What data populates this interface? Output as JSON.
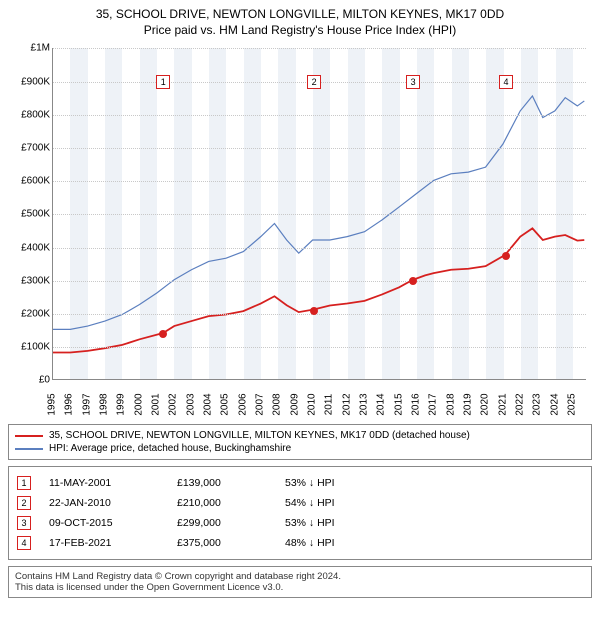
{
  "title": {
    "line1": "35, SCHOOL DRIVE, NEWTON LONGVILLE, MILTON KEYNES, MK17 0DD",
    "line2": "Price paid vs. HM Land Registry's House Price Index (HPI)"
  },
  "chart": {
    "type": "line",
    "background_color": "#ffffff",
    "band_color": "#eef2f7",
    "grid_color": "#c8c8c8",
    "axis_color": "#888888",
    "x": {
      "min": 1995,
      "max": 2025.8,
      "ticks": [
        1995,
        1996,
        1997,
        1998,
        1999,
        2000,
        2001,
        2002,
        2003,
        2004,
        2005,
        2006,
        2007,
        2008,
        2009,
        2010,
        2011,
        2012,
        2013,
        2014,
        2015,
        2016,
        2017,
        2018,
        2019,
        2020,
        2021,
        2022,
        2023,
        2024,
        2025
      ]
    },
    "y": {
      "min": 0,
      "max": 1000000,
      "ticks": [
        {
          "v": 0,
          "label": "£0"
        },
        {
          "v": 100000,
          "label": "£100K"
        },
        {
          "v": 200000,
          "label": "£200K"
        },
        {
          "v": 300000,
          "label": "£300K"
        },
        {
          "v": 400000,
          "label": "£400K"
        },
        {
          "v": 500000,
          "label": "£500K"
        },
        {
          "v": 600000,
          "label": "£600K"
        },
        {
          "v": 700000,
          "label": "£700K"
        },
        {
          "v": 800000,
          "label": "£800K"
        },
        {
          "v": 900000,
          "label": "£900K"
        },
        {
          "v": 1000000,
          "label": "£1M"
        }
      ]
    },
    "bands": [
      {
        "from": 1996,
        "to": 1997
      },
      {
        "from": 1998,
        "to": 1999
      },
      {
        "from": 2000,
        "to": 2001
      },
      {
        "from": 2002,
        "to": 2003
      },
      {
        "from": 2004,
        "to": 2005
      },
      {
        "from": 2006,
        "to": 2007
      },
      {
        "from": 2008,
        "to": 2009
      },
      {
        "from": 2010,
        "to": 2011
      },
      {
        "from": 2012,
        "to": 2013
      },
      {
        "from": 2014,
        "to": 2015
      },
      {
        "from": 2016,
        "to": 2017
      },
      {
        "from": 2018,
        "to": 2019
      },
      {
        "from": 2020,
        "to": 2021
      },
      {
        "from": 2022,
        "to": 2023
      },
      {
        "from": 2024,
        "to": 2025
      }
    ],
    "series": [
      {
        "id": "hpi",
        "label": "HPI: Average price, detached house, Buckinghamshire",
        "color": "#5b7fbf",
        "width": 1.2,
        "points": [
          [
            1995.0,
            150000
          ],
          [
            1996.0,
            150000
          ],
          [
            1997.0,
            160000
          ],
          [
            1998.0,
            175000
          ],
          [
            1999.0,
            195000
          ],
          [
            2000.0,
            225000
          ],
          [
            2001.0,
            260000
          ],
          [
            2002.0,
            300000
          ],
          [
            2003.0,
            330000
          ],
          [
            2004.0,
            355000
          ],
          [
            2005.0,
            365000
          ],
          [
            2006.0,
            385000
          ],
          [
            2007.0,
            430000
          ],
          [
            2007.8,
            470000
          ],
          [
            2008.5,
            420000
          ],
          [
            2009.2,
            380000
          ],
          [
            2010.0,
            420000
          ],
          [
            2011.0,
            420000
          ],
          [
            2012.0,
            430000
          ],
          [
            2013.0,
            445000
          ],
          [
            2014.0,
            480000
          ],
          [
            2015.0,
            520000
          ],
          [
            2016.0,
            560000
          ],
          [
            2017.0,
            600000
          ],
          [
            2018.0,
            620000
          ],
          [
            2019.0,
            625000
          ],
          [
            2020.0,
            640000
          ],
          [
            2021.0,
            710000
          ],
          [
            2022.0,
            810000
          ],
          [
            2022.7,
            855000
          ],
          [
            2023.3,
            790000
          ],
          [
            2024.0,
            810000
          ],
          [
            2024.6,
            850000
          ],
          [
            2025.3,
            825000
          ],
          [
            2025.7,
            840000
          ]
        ]
      },
      {
        "id": "price-paid",
        "label": "35, SCHOOL DRIVE, NEWTON LONGVILLE, MILTON KEYNES, MK17 0DD (detached house)",
        "color": "#d6201f",
        "width": 1.8,
        "points": [
          [
            1995.0,
            80000
          ],
          [
            1996.0,
            80000
          ],
          [
            1997.0,
            85000
          ],
          [
            1998.0,
            93000
          ],
          [
            1999.0,
            103000
          ],
          [
            2000.0,
            120000
          ],
          [
            2001.36,
            139000
          ],
          [
            2002.0,
            160000
          ],
          [
            2003.0,
            175000
          ],
          [
            2004.0,
            190000
          ],
          [
            2005.0,
            195000
          ],
          [
            2006.0,
            205000
          ],
          [
            2007.0,
            228000
          ],
          [
            2007.8,
            250000
          ],
          [
            2008.5,
            223000
          ],
          [
            2009.2,
            202000
          ],
          [
            2010.06,
            210000
          ],
          [
            2011.0,
            222000
          ],
          [
            2012.0,
            228000
          ],
          [
            2013.0,
            236000
          ],
          [
            2014.0,
            255000
          ],
          [
            2015.0,
            277000
          ],
          [
            2015.77,
            299000
          ],
          [
            2016.5,
            313000
          ],
          [
            2017.0,
            320000
          ],
          [
            2018.0,
            330000
          ],
          [
            2019.0,
            333000
          ],
          [
            2020.0,
            341000
          ],
          [
            2021.13,
            375000
          ],
          [
            2022.0,
            430000
          ],
          [
            2022.7,
            455000
          ],
          [
            2023.3,
            420000
          ],
          [
            2024.0,
            430000
          ],
          [
            2024.6,
            435000
          ],
          [
            2025.3,
            418000
          ],
          [
            2025.7,
            420000
          ]
        ]
      }
    ],
    "transaction_points": {
      "color": "#d6201f",
      "points": [
        {
          "n": "1",
          "x": 2001.36,
          "y": 139000
        },
        {
          "n": "2",
          "x": 2010.06,
          "y": 210000
        },
        {
          "n": "3",
          "x": 2015.77,
          "y": 299000
        },
        {
          "n": "4",
          "x": 2021.13,
          "y": 375000
        }
      ]
    },
    "marker_labels": {
      "color": "#d6201f",
      "y_on_chart": 900000,
      "items": [
        {
          "n": "1",
          "x": 2001.36
        },
        {
          "n": "2",
          "x": 2010.06
        },
        {
          "n": "3",
          "x": 2015.77
        },
        {
          "n": "4",
          "x": 2021.13
        }
      ]
    }
  },
  "transactions": {
    "marker_color": "#d6201f",
    "rows": [
      {
        "n": "1",
        "date": "11-MAY-2001",
        "price": "£139,000",
        "hpi": "53% ↓ HPI"
      },
      {
        "n": "2",
        "date": "22-JAN-2010",
        "price": "£210,000",
        "hpi": "54% ↓ HPI"
      },
      {
        "n": "3",
        "date": "09-OCT-2015",
        "price": "£299,000",
        "hpi": "53% ↓ HPI"
      },
      {
        "n": "4",
        "date": "17-FEB-2021",
        "price": "£375,000",
        "hpi": "48% ↓ HPI"
      }
    ]
  },
  "footer": {
    "line1": "Contains HM Land Registry data © Crown copyright and database right 2024.",
    "line2": "This data is licensed under the Open Government Licence v3.0."
  }
}
